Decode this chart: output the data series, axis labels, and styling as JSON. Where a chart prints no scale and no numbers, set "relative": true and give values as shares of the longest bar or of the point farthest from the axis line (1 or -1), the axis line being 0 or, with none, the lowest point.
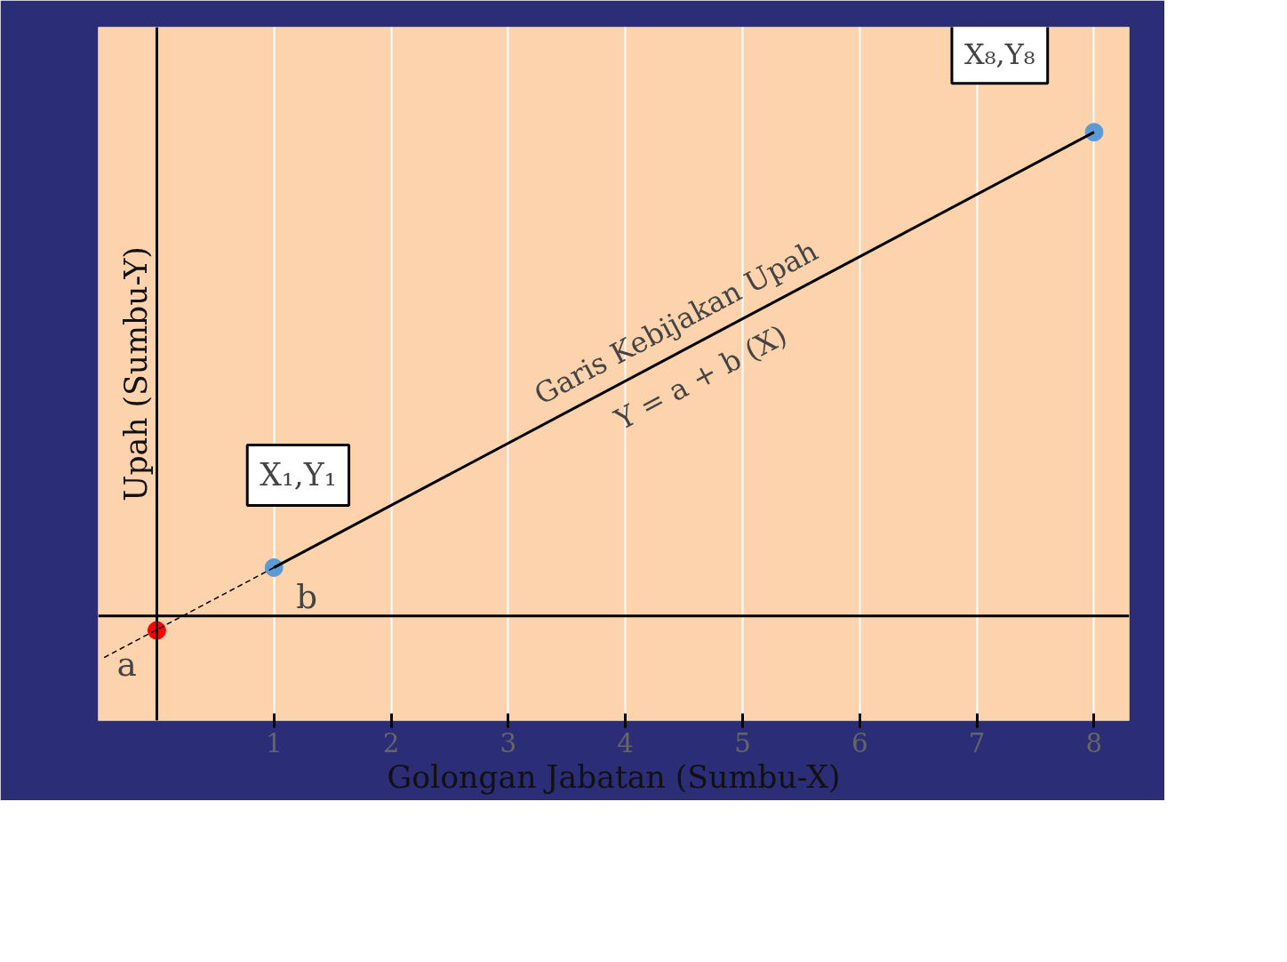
{
  "chart_data": {
    "type": "line",
    "relative": true,
    "xlabel": "Golongan Jabatan (Sumbu-X)",
    "ylabel": "Upah (Sumbu-Y)",
    "xlim": [
      -0.5,
      8.3
    ],
    "xticks": [
      1,
      2,
      3,
      4,
      5,
      6,
      7,
      8
    ],
    "tick_labels": "x",
    "grid": "x",
    "series": [
      {
        "x": [
          1,
          8
        ],
        "values": [
          0.1,
          1
        ],
        "color": "#000000",
        "line_style": "solid"
      },
      {
        "x": [
          -0.45,
          1
        ],
        "values": [
          -0.086,
          0.1
        ],
        "color": "#000000",
        "line_style": "dashed"
      },
      {
        "type": "scatter",
        "x": [
          1,
          8
        ],
        "values": [
          0.1,
          1
        ],
        "color": "#5b9bd5",
        "marker": "circle"
      },
      {
        "type": "scatter",
        "x": [
          0
        ],
        "values": [
          -0.03
        ],
        "color": "#ff0000",
        "marker": "circle"
      }
    ],
    "ref_lines": [
      {
        "axis": "y",
        "value": 0,
        "color": "#000000"
      }
    ],
    "annotations": [
      {
        "text": "X₁,Y₁",
        "x": 1,
        "y": 0.1
      },
      {
        "text": "X₈,Y₈",
        "x": 8,
        "y": 1
      },
      {
        "text": "a",
        "x": 0,
        "y": -0.03
      },
      {
        "text": "b",
        "x": 1,
        "y": 0.1
      },
      {
        "text": "Garis Kebijakan Upah",
        "x": 4.5,
        "y": 0.55
      },
      {
        "text": "Y = a + b (X)",
        "x": 4.5,
        "y": 0.55
      }
    ]
  }
}
